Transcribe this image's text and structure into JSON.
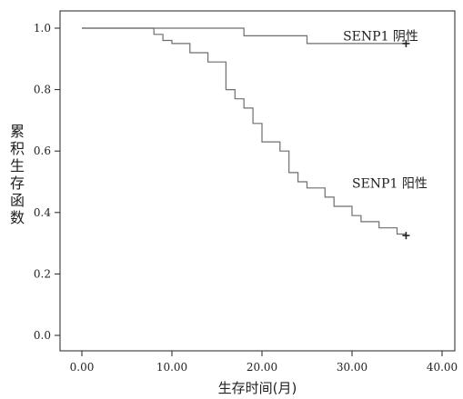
{
  "chart_data": {
    "type": "line",
    "step": true,
    "xlabel": "生存时间(月)",
    "ylabel": "累积生存函数",
    "xlim": [
      0,
      40
    ],
    "ylim": [
      0,
      1.0
    ],
    "x_ticks": [
      "0.00",
      "10.00",
      "20.00",
      "30.00",
      "40.00"
    ],
    "y_ticks": [
      "0.0",
      "0.2",
      "0.4",
      "0.6",
      "0.8",
      "1.0"
    ],
    "grid": false,
    "legend": "none",
    "series": [
      {
        "name": "SENP1 阴性",
        "color": "#6e6e6e",
        "censor_marker": "+",
        "points": [
          [
            0,
            1.0
          ],
          [
            18,
            1.0
          ],
          [
            18,
            0.975
          ],
          [
            25,
            0.975
          ],
          [
            25,
            0.95
          ],
          [
            36,
            0.95
          ]
        ],
        "censored": [
          [
            36,
            0.95
          ]
        ]
      },
      {
        "name": "SENP1 阳性",
        "color": "#6e6e6e",
        "censor_marker": "+",
        "points": [
          [
            0,
            1.0
          ],
          [
            8,
            1.0
          ],
          [
            8,
            0.98
          ],
          [
            9,
            0.98
          ],
          [
            9,
            0.96
          ],
          [
            10,
            0.96
          ],
          [
            10,
            0.95
          ],
          [
            12,
            0.95
          ],
          [
            12,
            0.92
          ],
          [
            14,
            0.92
          ],
          [
            14,
            0.89
          ],
          [
            16,
            0.89
          ],
          [
            16,
            0.8
          ],
          [
            17,
            0.8
          ],
          [
            17,
            0.77
          ],
          [
            18,
            0.77
          ],
          [
            18,
            0.74
          ],
          [
            19,
            0.74
          ],
          [
            19,
            0.69
          ],
          [
            20,
            0.69
          ],
          [
            20,
            0.63
          ],
          [
            22,
            0.63
          ],
          [
            22,
            0.6
          ],
          [
            23,
            0.6
          ],
          [
            23,
            0.53
          ],
          [
            24,
            0.53
          ],
          [
            24,
            0.5
          ],
          [
            25,
            0.5
          ],
          [
            25,
            0.48
          ],
          [
            27,
            0.48
          ],
          [
            27,
            0.45
          ],
          [
            28,
            0.45
          ],
          [
            28,
            0.42
          ],
          [
            30,
            0.42
          ],
          [
            30,
            0.39
          ],
          [
            31,
            0.39
          ],
          [
            31,
            0.37
          ],
          [
            33,
            0.37
          ],
          [
            33,
            0.35
          ],
          [
            35,
            0.35
          ],
          [
            35,
            0.33
          ],
          [
            36,
            0.33
          ]
        ],
        "censored": [
          [
            36,
            0.325
          ]
        ]
      }
    ],
    "annotations": [
      {
        "text": "SENP1 阴性",
        "x": 29,
        "y": 0.975
      },
      {
        "text": "SENP1 阳性",
        "x": 30,
        "y": 0.495
      }
    ]
  }
}
